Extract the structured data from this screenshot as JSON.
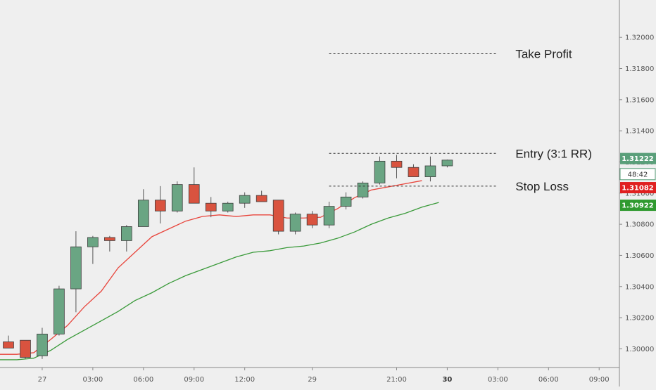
{
  "chart_data": {
    "type": "candlestick",
    "y_axis": {
      "ylim": [
        1.2988,
        1.3224
      ],
      "ticks": [
        1.3,
        1.302,
        1.304,
        1.306,
        1.308,
        1.31,
        1.312,
        1.314,
        1.316,
        1.318,
        1.32
      ],
      "tick_labels": [
        "1.30000",
        "1.30200",
        "1.30400",
        "1.30600",
        "1.30800",
        "1.31000",
        "1.31200",
        "1.31400",
        "1.31600",
        "1.31800",
        "1.32000"
      ],
      "position": "right"
    },
    "x_axis": {
      "xlim": [
        -0.5,
        36.2
      ],
      "ticks": [
        2,
        5,
        8,
        11,
        14,
        17,
        20,
        23,
        26,
        29,
        32,
        35
      ],
      "tick_labels": [
        "27",
        "03:00",
        "06:00",
        "09:00",
        "12:00",
        "29",
        "21:00",
        "30",
        "03:00",
        "06:00",
        "09:00"
      ],
      "tick_positions": [
        2,
        5,
        8,
        11,
        14,
        18,
        23,
        26,
        29,
        32,
        35
      ],
      "bold_labels": [
        "30"
      ]
    },
    "candles": [
      {
        "o": 1.30045,
        "h": 1.30085,
        "l": 1.30005,
        "c": 1.30005
      },
      {
        "o": 1.30055,
        "h": 1.30055,
        "l": 1.29935,
        "c": 1.29945
      },
      {
        "o": 1.29955,
        "h": 1.30135,
        "l": 1.29935,
        "c": 1.30095
      },
      {
        "o": 1.30095,
        "h": 1.30405,
        "l": 1.30085,
        "c": 1.30385
      },
      {
        "o": 1.30385,
        "h": 1.30755,
        "l": 1.30235,
        "c": 1.30655
      },
      {
        "o": 1.30655,
        "h": 1.30725,
        "l": 1.30545,
        "c": 1.30715
      },
      {
        "o": 1.30715,
        "h": 1.30725,
        "l": 1.30625,
        "c": 1.30695
      },
      {
        "o": 1.30695,
        "h": 1.30795,
        "l": 1.30625,
        "c": 1.30785
      },
      {
        "o": 1.30785,
        "h": 1.31025,
        "l": 1.30785,
        "c": 1.30955
      },
      {
        "o": 1.30955,
        "h": 1.31045,
        "l": 1.30805,
        "c": 1.30885
      },
      {
        "o": 1.30885,
        "h": 1.31075,
        "l": 1.30875,
        "c": 1.31055
      },
      {
        "o": 1.31055,
        "h": 1.31165,
        "l": 1.30935,
        "c": 1.30935
      },
      {
        "o": 1.30935,
        "h": 1.30975,
        "l": 1.30845,
        "c": 1.30885
      },
      {
        "o": 1.30885,
        "h": 1.30945,
        "l": 1.30875,
        "c": 1.30935
      },
      {
        "o": 1.30935,
        "h": 1.31005,
        "l": 1.30905,
        "c": 1.30985
      },
      {
        "o": 1.30985,
        "h": 1.31015,
        "l": 1.30945,
        "c": 1.30945
      },
      {
        "o": 1.30955,
        "h": 1.30955,
        "l": 1.30735,
        "c": 1.30755
      },
      {
        "o": 1.30755,
        "h": 1.30875,
        "l": 1.30735,
        "c": 1.30865
      },
      {
        "o": 1.30865,
        "h": 1.30885,
        "l": 1.30775,
        "c": 1.30795
      },
      {
        "o": 1.30795,
        "h": 1.30945,
        "l": 1.30775,
        "c": 1.30915
      },
      {
        "o": 1.30915,
        "h": 1.31005,
        "l": 1.30895,
        "c": 1.30975
      },
      {
        "o": 1.30975,
        "h": 1.31075,
        "l": 1.30965,
        "c": 1.31065
      },
      {
        "o": 1.31065,
        "h": 1.31235,
        "l": 1.31055,
        "c": 1.31205
      },
      {
        "o": 1.31205,
        "h": 1.31245,
        "l": 1.31095,
        "c": 1.31165
      },
      {
        "o": 1.31165,
        "h": 1.31185,
        "l": 1.31105,
        "c": 1.31105
      },
      {
        "o": 1.31105,
        "h": 1.31235,
        "l": 1.31075,
        "c": 1.31175
      },
      {
        "o": 1.31175,
        "h": 1.31215,
        "l": 1.31165,
        "c": 1.31212
      }
    ],
    "series": [
      {
        "name": "",
        "color": "#e8453c",
        "kind": "moving-average",
        "start_index": -0.5,
        "values": [
          1.29965,
          1.29965,
          1.29975,
          1.3006,
          1.3015,
          1.3027,
          1.3037,
          1.3052,
          1.3062,
          1.3072,
          1.3077,
          1.3082,
          1.3085,
          1.3086,
          1.3085,
          1.3086,
          1.3086,
          1.3084,
          1.3084,
          1.30845,
          1.309,
          1.3097,
          1.3102,
          1.3104,
          1.3106,
          1.3108
        ]
      },
      {
        "name": "",
        "color": "#3a9a3a",
        "kind": "moving-average",
        "start_index": -0.5,
        "values": [
          1.2993,
          1.2993,
          1.2994,
          1.2999,
          1.3006,
          1.3012,
          1.3018,
          1.3024,
          1.3031,
          1.3036,
          1.3042,
          1.3047,
          1.3051,
          1.3055,
          1.3059,
          1.3062,
          1.3063,
          1.3065,
          1.3066,
          1.3068,
          1.3071,
          1.3075,
          1.308,
          1.3084,
          1.3087,
          1.3091,
          1.3094
        ]
      }
    ],
    "levels": [
      {
        "label": "Take Profit",
        "price": 1.31895
      },
      {
        "label": "Entry (3:1 RR)",
        "price": 1.31255
      },
      {
        "label": "Stop Loss",
        "price": 1.31045
      }
    ],
    "level_x_start_index": 19,
    "level_x_end_index": 29,
    "price_tags": [
      {
        "text": "1.31222",
        "price": 1.31222,
        "color": "#5a9f7a"
      },
      {
        "text": "48:42",
        "price": 1.31122,
        "color": "#5a9f7a",
        "outline": true
      },
      {
        "text": "1.31082",
        "price": 1.31035,
        "color": "#e02020"
      },
      {
        "text": "1.30922",
        "price": 1.30922,
        "color": "#2f9a2f"
      }
    ],
    "colors": {
      "up": "#6aa583",
      "down": "#d9533f",
      "wick": "#555555",
      "grid": "#e2e2e2",
      "axis": "#888888"
    },
    "grid": false
  }
}
